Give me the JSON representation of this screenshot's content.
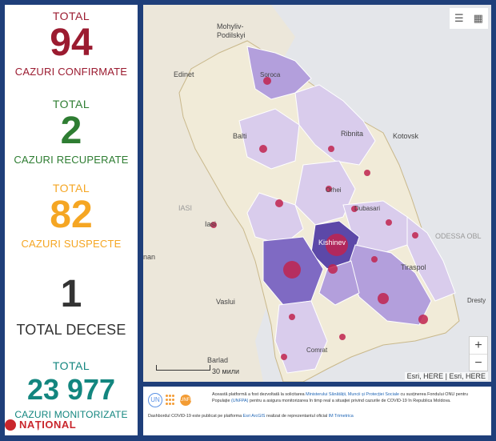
{
  "stats": {
    "confirmed": {
      "total_label": "TOTAL",
      "value": "94",
      "label": "CAZURI CONFIRMATE",
      "color": "#9b1b30"
    },
    "recovered": {
      "total_label": "TOTAL",
      "value": "2",
      "label": "CAZURI RECUPERATE",
      "color": "#2e7d32"
    },
    "suspected": {
      "total_label": "TOTAL",
      "value": "82",
      "label": "CAZURI SUSPECTE",
      "color": "#f5a623"
    },
    "deaths": {
      "value": "1",
      "label": "TOTAL DECESE",
      "color": "#333333"
    },
    "monitored": {
      "total_label": "TOTAL",
      "value": "23 977",
      "label": "CAZURI MONITORIZATE",
      "color": "#13867f"
    }
  },
  "logo": {
    "text": "NAȚIONAL"
  },
  "map": {
    "places": {
      "mohyliv": "Mohyliv-",
      "podilskyi": "Podilskyi",
      "edinet": "Edinet",
      "soroca": "Soroca",
      "balti": "Balti",
      "ribnita": "Ribnita",
      "kotovsk": "Kotovsk",
      "orhei": "Orhei",
      "iasi_region": "IASI",
      "iasi": "Iasi",
      "dubasari": "Dubasari",
      "chisinau": "Kishinev",
      "odessa": "ODESSA OBL",
      "tiraspol": "Tiraspol",
      "vaslui": "Vaslui",
      "comrat": "Comrat",
      "barlad": "Barlad",
      "nan": "nan",
      "dresty": "Dresty"
    },
    "scale_label": "30 мили",
    "attribution": "Esri, HERE | Esri, HERE",
    "zoom_in": "+",
    "zoom_out": "−",
    "tool_list_icon": "list-icon",
    "tool_grid_icon": "grid-icon"
  },
  "info": {
    "text1": "Această platformă a fost dezvoltată la solicitarea",
    "link1": "Ministerului Sănătății, Muncii și Protecției Sociale",
    "text2": "cu susținerea Fondului ONU pentru Populație",
    "link2": "(UNFPA)",
    "text3": "pentru a asigura monitorizarea în timp real a situației privind cazurile de COVID-19 în Republica Moldova.",
    "text4": "Dashbordul COVID-19 este publicat pe platforma",
    "link3": "Esri ArcGIS",
    "text5": "realizat de reprezentantul oficial",
    "link4": "IM Trimetrica",
    "un_logo": "UN",
    "unfpa_logo": "UNFPA"
  },
  "colors": {
    "panel_border": "#1f3f7a",
    "region_fill": "#d9ccec",
    "region_fill_mid": "#b39fdc",
    "region_fill_dark": "#7f6ac3",
    "region_fill_darkest": "#5c48a8",
    "marker": "#c0234f",
    "land": "#f1ebd8"
  }
}
